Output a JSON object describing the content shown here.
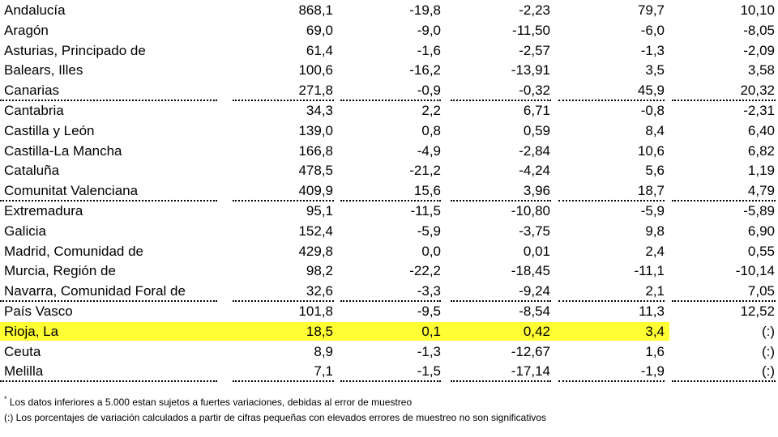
{
  "rows": [
    {
      "name": "Andalucía",
      "v1": "868,1",
      "v2": "-19,8",
      "v3": "-2,23",
      "v4": "79,7",
      "v5": "10,10",
      "highlight": false,
      "sep": false
    },
    {
      "name": "Aragón",
      "v1": "69,0",
      "v2": "-9,0",
      "v3": "-11,50",
      "v4": "-6,0",
      "v5": "-8,05",
      "highlight": false,
      "sep": false
    },
    {
      "name": "Asturias, Principado de",
      "v1": "61,4",
      "v2": "-1,6",
      "v3": "-2,57",
      "v4": "-1,3",
      "v5": "-2,09",
      "highlight": false,
      "sep": false
    },
    {
      "name": "Balears, Illes",
      "v1": "100,6",
      "v2": "-16,2",
      "v3": "-13,91",
      "v4": "3,5",
      "v5": "3,58",
      "highlight": false,
      "sep": false
    },
    {
      "name": "Canarias",
      "v1": "271,8",
      "v2": "-0,9",
      "v3": "-0,32",
      "v4": "45,9",
      "v5": "20,32",
      "highlight": false,
      "sep": true
    },
    {
      "name": "Cantabria",
      "v1": "34,3",
      "v2": "2,2",
      "v3": "6,71",
      "v4": "-0,8",
      "v5": "-2,31",
      "highlight": false,
      "sep": false
    },
    {
      "name": "Castilla y León",
      "v1": "139,0",
      "v2": "0,8",
      "v3": "0,59",
      "v4": "8,4",
      "v5": "6,40",
      "highlight": false,
      "sep": false
    },
    {
      "name": "Castilla-La Mancha",
      "v1": "166,8",
      "v2": "-4,9",
      "v3": "-2,84",
      "v4": "10,6",
      "v5": "6,82",
      "highlight": false,
      "sep": false
    },
    {
      "name": "Cataluña",
      "v1": "478,5",
      "v2": "-21,2",
      "v3": "-4,24",
      "v4": "5,6",
      "v5": "1,19",
      "highlight": false,
      "sep": false
    },
    {
      "name": "Comunitat Valenciana",
      "v1": "409,9",
      "v2": "15,6",
      "v3": "3,96",
      "v4": "18,7",
      "v5": "4,79",
      "highlight": false,
      "sep": true
    },
    {
      "name": "Extremadura",
      "v1": "95,1",
      "v2": "-11,5",
      "v3": "-10,80",
      "v4": "-5,9",
      "v5": "-5,89",
      "highlight": false,
      "sep": false
    },
    {
      "name": "Galicia",
      "v1": "152,4",
      "v2": "-5,9",
      "v3": "-3,75",
      "v4": "9,8",
      "v5": "6,90",
      "highlight": false,
      "sep": false
    },
    {
      "name": "Madrid, Comunidad de",
      "v1": "429,8",
      "v2": "0,0",
      "v3": "0,01",
      "v4": "2,4",
      "v5": "0,55",
      "highlight": false,
      "sep": false
    },
    {
      "name": "Murcia, Región de",
      "v1": "98,2",
      "v2": "-22,2",
      "v3": "-18,45",
      "v4": "-11,1",
      "v5": "-10,14",
      "highlight": false,
      "sep": false
    },
    {
      "name": "Navarra, Comunidad Foral de",
      "v1": "32,6",
      "v2": "-3,3",
      "v3": "-9,24",
      "v4": "2,1",
      "v5": "7,05",
      "highlight": false,
      "sep": true
    },
    {
      "name": "País Vasco",
      "v1": "101,8",
      "v2": "-9,5",
      "v3": "-8,54",
      "v4": "11,3",
      "v5": "12,52",
      "highlight": false,
      "sep": false
    },
    {
      "name": "Rioja, La",
      "v1": "18,5",
      "v2": "0,1",
      "v3": "0,42",
      "v4": "3,4",
      "v5": "(:)",
      "highlight": true,
      "sep": false
    },
    {
      "name": "Ceuta",
      "v1": "8,9",
      "v2": "-1,3",
      "v3": "-12,67",
      "v4": "1,6",
      "v5": "(:)",
      "highlight": false,
      "sep": false
    },
    {
      "name": "Melilla",
      "v1": "7,1",
      "v2": "-1,5",
      "v3": "-17,14",
      "v4": "-1,9",
      "v5": "(:)",
      "highlight": false,
      "sep": true
    }
  ],
  "footnotes": {
    "note1_marker": "*",
    "note1": "Los datos inferiores a 5.000 estan sujetos a fuertes variaciones, debidas al error de muestreo",
    "note2": "(:) Los porcentajes de variación calculados a partir de cifras pequeñas con elevados errores de muestreo no son significativos"
  },
  "colors": {
    "highlight": "#ffff33"
  }
}
